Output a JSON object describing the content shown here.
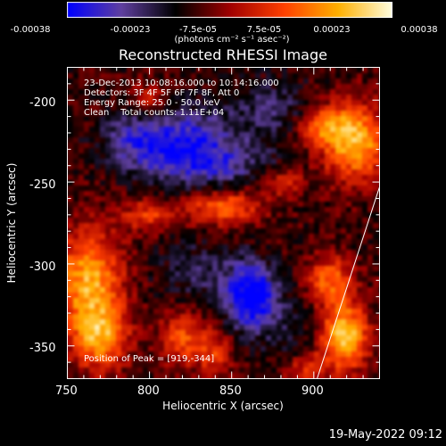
{
  "colorbar": {
    "ticks": [
      "-0.00038",
      "-0.00023",
      "-7.5e-05",
      "7.5e-05",
      "0.00023",
      "0.00038"
    ],
    "units": "(photons cm⁻² s⁻¹ asec⁻²)",
    "colors": [
      "#0000ff",
      "#6040a0",
      "#000000",
      "#a00000",
      "#ff4000",
      "#ffb000",
      "#ffffe0"
    ]
  },
  "title": "Reconstructed RHESSI Image",
  "info": {
    "line1": "23-Dec-2013 10:08:16.000 to 10:14:16.000",
    "line2": "Detectors: 3F 4F 5F 6F 7F 8F, Att 0",
    "line3": "Energy Range: 25.0 - 50.0 keV",
    "line4": "Clean    Total counts: 1.11E+04",
    "peak": "Position of Peak = [919,-344]"
  },
  "axes": {
    "xlabel": "Heliocentric X (arcsec)",
    "ylabel": "Heliocentric Y (arcsec)",
    "xticks": [
      "750",
      "800",
      "850",
      "900"
    ],
    "yticks": [
      "-200",
      "-250",
      "-300",
      "-350"
    ]
  },
  "chart_data": {
    "type": "heatmap",
    "title": "Reconstructed RHESSI Image",
    "xlabel": "Heliocentric X (arcsec)",
    "ylabel": "Heliocentric Y (arcsec)",
    "xlim": [
      750,
      940
    ],
    "ylim": [
      -370,
      -180
    ],
    "colorbar_range": [
      -0.00038,
      0.00038
    ],
    "peak": [
      919,
      -344
    ],
    "blobs": [
      {
        "x": 763,
        "y": -310,
        "v": 0.00033,
        "sx": 14,
        "sy": 22
      },
      {
        "x": 770,
        "y": -345,
        "v": 0.00028,
        "sx": 12,
        "sy": 14
      },
      {
        "x": 925,
        "y": -225,
        "v": 0.00035,
        "sx": 14,
        "sy": 16
      },
      {
        "x": 905,
        "y": -215,
        "v": 0.00022,
        "sx": 10,
        "sy": 8
      },
      {
        "x": 919,
        "y": -344,
        "v": 0.00038,
        "sx": 10,
        "sy": 14
      },
      {
        "x": 910,
        "y": -310,
        "v": 0.00024,
        "sx": 10,
        "sy": 10
      },
      {
        "x": 845,
        "y": -265,
        "v": 0.00025,
        "sx": 16,
        "sy": 8
      },
      {
        "x": 800,
        "y": -270,
        "v": 0.00018,
        "sx": 12,
        "sy": 7
      },
      {
        "x": 880,
        "y": -250,
        "v": 0.00016,
        "sx": 10,
        "sy": 6
      },
      {
        "x": 800,
        "y": -200,
        "v": 0.00015,
        "sx": 8,
        "sy": 8
      },
      {
        "x": 820,
        "y": -345,
        "v": 0.0002,
        "sx": 10,
        "sy": 12
      },
      {
        "x": 840,
        "y": -355,
        "v": 0.00016,
        "sx": 8,
        "sy": 10
      },
      {
        "x": 895,
        "y": -365,
        "v": 0.00018,
        "sx": 10,
        "sy": 8
      },
      {
        "x": 862,
        "y": -320,
        "v": -0.00035,
        "sx": 11,
        "sy": 14
      },
      {
        "x": 820,
        "y": -225,
        "v": -0.00022,
        "sx": 22,
        "sy": 15
      },
      {
        "x": 840,
        "y": -240,
        "v": -0.00015,
        "sx": 25,
        "sy": 12
      },
      {
        "x": 790,
        "y": -225,
        "v": -0.00014,
        "sx": 14,
        "sy": 12
      },
      {
        "x": 875,
        "y": -205,
        "v": -0.00012,
        "sx": 18,
        "sy": 12
      },
      {
        "x": 830,
        "y": -305,
        "v": -0.0001,
        "sx": 18,
        "sy": 14
      },
      {
        "x": 885,
        "y": -345,
        "v": -8e-05,
        "sx": 12,
        "sy": 18
      }
    ],
    "limb_line": [
      [
        902,
        -370
      ],
      [
        940,
        -253
      ]
    ]
  },
  "footer": {
    "timestamp": "19-May-2022 09:12"
  }
}
